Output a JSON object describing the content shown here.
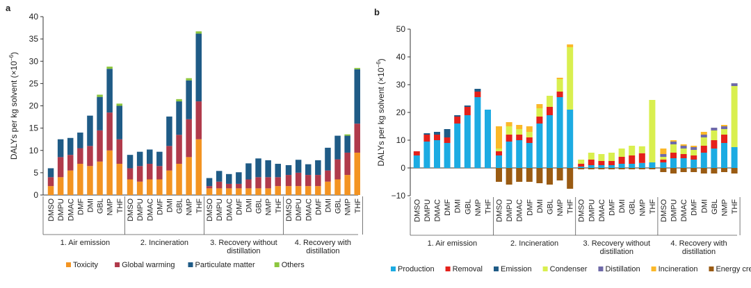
{
  "chart_data": [
    {
      "panel_label": "a",
      "type": "bar",
      "stacked": true,
      "ylabel": "DALYs per kg solvent (×10",
      "ylabel_sup": "−6",
      "ylabel_close": ")",
      "ylim": [
        0,
        40
      ],
      "yticks": [
        0,
        5,
        10,
        15,
        20,
        25,
        30,
        35,
        40
      ],
      "categories": [
        "DMSO",
        "DMPU",
        "DMAC",
        "DMF",
        "DMI",
        "GBL",
        "NMP",
        "THF"
      ],
      "groups": [
        {
          "label_lines": [
            "1. Air emission"
          ]
        },
        {
          "label_lines": [
            "2. Incineration"
          ]
        },
        {
          "label_lines": [
            "3. Recovery without",
            "distillation"
          ]
        },
        {
          "label_lines": [
            "4. Recovery with",
            "distillation"
          ]
        }
      ],
      "series": [
        {
          "name": "Toxicity",
          "color": "#f39422",
          "values": [
            [
              2,
              4,
              5.5,
              7,
              6.5,
              7.5,
              10,
              7
            ],
            [
              3.5,
              3,
              3.5,
              3.5,
              5.5,
              7,
              8.5,
              12.5
            ],
            [
              1.5,
              1.5,
              1.5,
              1.5,
              1.5,
              1.5,
              1.5,
              2
            ],
            [
              2,
              2,
              2,
              2,
              3,
              3.5,
              4.5,
              9.5
            ]
          ]
        },
        {
          "name": "Global warming",
          "color": "#b03a4b",
          "values": [
            [
              2,
              4.5,
              3.5,
              3.5,
              4.5,
              7,
              8.5,
              5.5
            ],
            [
              2.5,
              3.5,
              3.5,
              3,
              5.5,
              6.5,
              8.5,
              8.5
            ],
            [
              0.5,
              1.5,
              1,
              1,
              2,
              2.5,
              2.5,
              2
            ],
            [
              2.5,
              3,
              2.5,
              2.5,
              2.5,
              4.5,
              5,
              6.5
            ]
          ]
        },
        {
          "name": "Particulate matter",
          "color": "#1f5b86",
          "values": [
            [
              2,
              4,
              3.8,
              3.5,
              6.8,
              7.5,
              9.8,
              7.5
            ],
            [
              3,
              3.2,
              3.2,
              3.2,
              6.6,
              7.5,
              8.7,
              15.2
            ],
            [
              1.8,
              2.4,
              2.2,
              2.6,
              3.6,
              4.2,
              3.8,
              3
            ],
            [
              2.2,
              2.9,
              2.4,
              3.3,
              5.1,
              5.3,
              3.8,
              12.2
            ]
          ]
        },
        {
          "name": "Others",
          "color": "#8dc63f",
          "values": [
            [
              0,
              0,
              0,
              0,
              0,
              0.5,
              0.5,
              0.5
            ],
            [
              0,
              0,
              0,
              0,
              0,
              0.5,
              0.5,
              0.5
            ],
            [
              0,
              0,
              0,
              0,
              0,
              0,
              0,
              0
            ],
            [
              0,
              0,
              0,
              0,
              0,
              0,
              0.3,
              0.3
            ]
          ]
        }
      ],
      "legend_position": "bottom",
      "grid": false
    },
    {
      "panel_label": "b",
      "type": "bar",
      "stacked": true,
      "ylabel": "DALYs per kg solvent (×10",
      "ylabel_sup": "−6",
      "ylabel_close": ")",
      "ylim": [
        -10,
        50
      ],
      "yticks": [
        -10,
        0,
        10,
        20,
        30,
        40,
        50
      ],
      "categories": [
        "DMSO",
        "DMPU",
        "DMAC",
        "DMF",
        "DMI",
        "GBL",
        "NMP",
        "THF"
      ],
      "groups": [
        {
          "label_lines": [
            "1. Air emission"
          ]
        },
        {
          "label_lines": [
            "2. Incineration"
          ]
        },
        {
          "label_lines": [
            "3. Recovery without",
            "distillation"
          ]
        },
        {
          "label_lines": [
            "4. Recovery with",
            "distillation"
          ]
        }
      ],
      "series": [
        {
          "name": "Production",
          "color": "#1cabe2",
          "values": [
            [
              4.5,
              9.5,
              10,
              9,
              16,
              19,
              25.5,
              21
            ],
            [
              4.5,
              9.5,
              10,
              9,
              16,
              19,
              25.5,
              21
            ],
            [
              0.5,
              1,
              1,
              1,
              1.5,
              1.5,
              1.8,
              2
            ],
            [
              2,
              3.5,
              3.5,
              3,
              5.5,
              7,
              9,
              7.5
            ]
          ]
        },
        {
          "name": "Removal",
          "color": "#e4211b",
          "values": [
            [
              1.5,
              2.5,
              2,
              2,
              2.5,
              3,
              2,
              0
            ],
            [
              1.5,
              2.5,
              2,
              2,
              2.5,
              3,
              2,
              0
            ],
            [
              1,
              2,
              1.5,
              1.5,
              2.5,
              3,
              3.5,
              0
            ],
            [
              1,
              2,
              1.5,
              1.5,
              2.5,
              3,
              3,
              0
            ]
          ]
        },
        {
          "name": "Emission",
          "color": "#1f5b86",
          "values": [
            [
              0,
              0.5,
              1,
              3,
              0.5,
              0.5,
              1,
              0
            ],
            [
              0,
              0,
              0,
              0,
              0,
              0,
              0,
              0
            ],
            [
              0,
              0,
              0,
              0,
              0,
              0,
              0,
              0
            ],
            [
              0,
              0,
              0,
              0,
              0,
              0,
              0,
              0
            ]
          ]
        },
        {
          "name": "Condenser",
          "color": "#d9ef4f",
          "values": [
            [
              0,
              0,
              0,
              0,
              0,
              0,
              0,
              0
            ],
            [
              1,
              3,
              2,
              2,
              3,
              4,
              4.5,
              22.5
            ],
            [
              1.5,
              2.5,
              2.5,
              3,
              3,
              3.5,
              2.5,
              22.5
            ],
            [
              1,
              3,
              2,
              2,
              3,
              3.5,
              2,
              22
            ]
          ]
        },
        {
          "name": "Distillation",
          "color": "#6f6aa8",
          "values": [
            [
              0,
              0,
              0,
              0,
              0,
              0,
              0,
              0
            ],
            [
              0,
              0,
              0,
              0,
              0,
              0,
              0,
              0
            ],
            [
              0,
              0,
              0,
              0,
              0,
              0,
              0,
              0
            ],
            [
              1,
              1,
              1,
              1,
              1,
              1,
              1,
              1
            ]
          ]
        },
        {
          "name": "Incineration",
          "color": "#fbb829",
          "values": [
            [
              0,
              0,
              0,
              0,
              0,
              0,
              0,
              0
            ],
            [
              8,
              1.5,
              1.5,
              2,
              1.5,
              0,
              0.5,
              1
            ],
            [
              0,
              0,
              0,
              0,
              0,
              0,
              0,
              0
            ],
            [
              2,
              0.5,
              0.5,
              0.5,
              1,
              0,
              0.5,
              0
            ]
          ]
        },
        {
          "name": "Energy credits",
          "color": "#9a5b13",
          "values": [
            [
              0,
              0,
              0,
              0,
              0,
              0,
              0,
              0
            ],
            [
              -5,
              -6,
              -5,
              -5,
              -5.5,
              -6,
              -4.5,
              -7.5
            ],
            [
              -0.5,
              -0.5,
              -0.5,
              -0.5,
              -0.5,
              -0.5,
              -0.5,
              -0.5
            ],
            [
              -1.5,
              -2,
              -1.5,
              -1.5,
              -2,
              -2,
              -1.5,
              -2
            ]
          ]
        }
      ],
      "legend_position": "bottom",
      "grid": false
    }
  ]
}
